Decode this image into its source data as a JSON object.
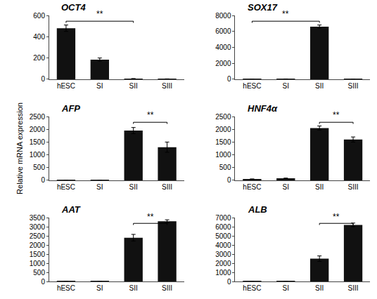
{
  "chart_data": [
    {
      "type": "bar",
      "title": "OCT4",
      "categories": [
        "hESC",
        "SI",
        "SII",
        "SIII"
      ],
      "values": [
        480,
        185,
        5,
        3
      ],
      "errors": [
        30,
        15,
        2,
        1
      ],
      "color": "#111111",
      "ylim": [
        0,
        600
      ],
      "yticks": [
        0,
        200,
        400,
        600
      ],
      "grid": false,
      "annotations": [
        {
          "text": "**",
          "from": "hESC",
          "to": "SII"
        }
      ]
    },
    {
      "type": "bar",
      "title": "SOX17",
      "categories": [
        "hESC",
        "SI",
        "SII",
        "SIII"
      ],
      "values": [
        5,
        40,
        6600,
        8
      ],
      "errors": [
        2,
        5,
        200,
        3
      ],
      "color": "#111111",
      "ylim": [
        0,
        8000
      ],
      "yticks": [
        0,
        2000,
        4000,
        6000,
        8000
      ],
      "grid": false,
      "annotations": [
        {
          "text": "**",
          "from": "hESC",
          "to": "SII"
        }
      ]
    },
    {
      "type": "bar",
      "title": "AFP",
      "ylabel": "Relative mRNA expression",
      "categories": [
        "hESC",
        "SI",
        "SII",
        "SIII"
      ],
      "values": [
        3,
        5,
        1950,
        1300
      ],
      "errors": [
        1,
        2,
        120,
        200
      ],
      "color": "#111111",
      "ylim": [
        0,
        2500
      ],
      "yticks": [
        0,
        500,
        1000,
        1500,
        2000,
        2500
      ],
      "grid": false,
      "annotations": [
        {
          "text": "**",
          "from": "SII",
          "to": "SIII"
        }
      ]
    },
    {
      "type": "bar",
      "title": "HNF4α",
      "categories": [
        "hESC",
        "SI",
        "SII",
        "SIII"
      ],
      "values": [
        50,
        80,
        2050,
        1600
      ],
      "errors": [
        5,
        10,
        80,
        100
      ],
      "color": "#111111",
      "ylim": [
        0,
        2500
      ],
      "yticks": [
        0,
        500,
        1000,
        1500,
        2000,
        2500
      ],
      "grid": false,
      "annotations": [
        {
          "text": "**",
          "from": "SII",
          "to": "SIII"
        }
      ]
    },
    {
      "type": "bar",
      "title": "AAT",
      "categories": [
        "hESC",
        "SI",
        "SII",
        "SIII"
      ],
      "values": [
        5,
        8,
        2400,
        3300
      ],
      "errors": [
        2,
        2,
        180,
        80
      ],
      "color": "#111111",
      "ylim": [
        0,
        3500
      ],
      "yticks": [
        0,
        500,
        1000,
        1500,
        2000,
        2500,
        3000,
        3500
      ],
      "grid": false,
      "annotations": [
        {
          "text": "**",
          "from": "SII",
          "to": "SIII"
        }
      ]
    },
    {
      "type": "bar",
      "title": "ALB",
      "categories": [
        "hESC",
        "SI",
        "SII",
        "SIII"
      ],
      "values": [
        5,
        8,
        2500,
        6200
      ],
      "errors": [
        2,
        2,
        300,
        200
      ],
      "color": "#111111",
      "ylim": [
        0,
        7000
      ],
      "yticks": [
        0,
        1000,
        2000,
        3000,
        4000,
        5000,
        6000,
        7000
      ],
      "grid": false,
      "annotations": [
        {
          "text": "**",
          "from": "SII",
          "to": "SIII"
        }
      ]
    }
  ]
}
